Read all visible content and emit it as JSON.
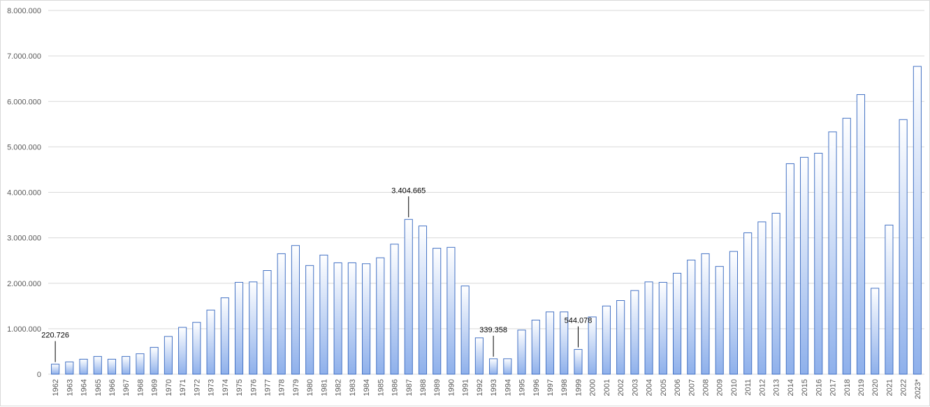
{
  "chart_data": {
    "type": "bar",
    "title": "",
    "xlabel": "",
    "ylabel": "",
    "ylim": [
      0,
      8000000
    ],
    "grid": true,
    "legend": "none",
    "y_ticks": [
      "0",
      "1.000.000",
      "2.000.000",
      "3.000.000",
      "4.000.000",
      "5.000.000",
      "6.000.000",
      "7.000.000",
      "8.000.000"
    ],
    "y_tick_values": [
      0,
      1000000,
      2000000,
      3000000,
      4000000,
      5000000,
      6000000,
      7000000,
      8000000
    ],
    "categories": [
      "1962",
      "1963",
      "1964",
      "1965",
      "1966",
      "1967",
      "1968",
      "1969",
      "1970",
      "1971",
      "1972",
      "1973",
      "1974",
      "1975",
      "1976",
      "1977",
      "1978",
      "1979",
      "1980",
      "1981",
      "1982",
      "1983",
      "1984",
      "1985",
      "1986",
      "1987",
      "1988",
      "1989",
      "1990",
      "1991",
      "1992",
      "1993",
      "1994",
      "1995",
      "1996",
      "1997",
      "1998",
      "1999",
      "2000",
      "2001",
      "2002",
      "2003",
      "2004",
      "2005",
      "2006",
      "2007",
      "2008",
      "2009",
      "2010",
      "2011",
      "2012",
      "2013",
      "2014",
      "2015",
      "2016",
      "2017",
      "2018",
      "2019",
      "2020",
      "2021",
      "2022",
      "2023*"
    ],
    "values": [
      220726,
      270000,
      330000,
      390000,
      330000,
      390000,
      450000,
      590000,
      830000,
      1030000,
      1140000,
      1410000,
      1680000,
      2020000,
      2030000,
      2280000,
      2650000,
      2830000,
      2390000,
      2620000,
      2450000,
      2450000,
      2430000,
      2560000,
      2860000,
      3404665,
      3260000,
      2770000,
      2790000,
      1940000,
      800000,
      339358,
      340000,
      970000,
      1190000,
      1370000,
      1370000,
      544078,
      1260000,
      1500000,
      1620000,
      1840000,
      2030000,
      2020000,
      2220000,
      2510000,
      2650000,
      2370000,
      2700000,
      3110000,
      3350000,
      3540000,
      4630000,
      4770000,
      4860000,
      5330000,
      5630000,
      6150000,
      1890000,
      3280000,
      5600000,
      6770000
    ],
    "annotations": [
      {
        "category": "1962",
        "label": "220.726"
      },
      {
        "category": "1987",
        "label": "3.404.665"
      },
      {
        "category": "1993",
        "label": "339.358"
      },
      {
        "category": "1999",
        "label": "544.078"
      }
    ],
    "colors": {
      "bar_top": "#ffffff",
      "bar_bottom": "#8eb0eb",
      "bar_border": "#4472c4",
      "grid": "#d9d9d9",
      "axis_text": "#595959"
    }
  }
}
